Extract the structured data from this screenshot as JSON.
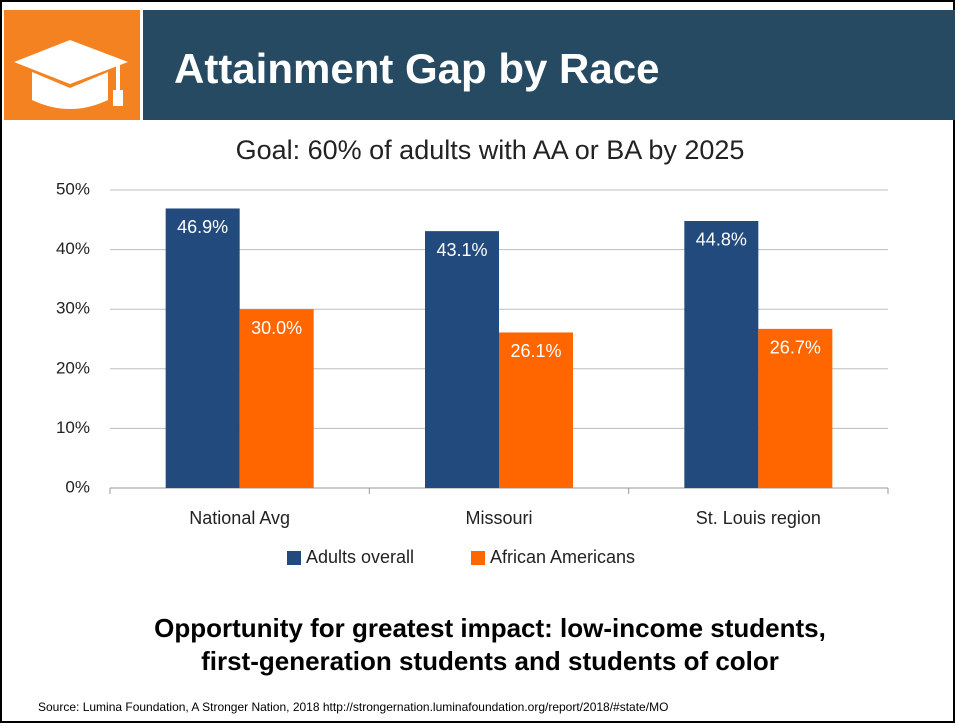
{
  "slide": {
    "title": "Attainment Gap by Race",
    "takeaway": [
      "Opportunity for greatest impact: low-income students,",
      "first-generation students and students of color"
    ],
    "source": "Source: Lumina Foundation, A Stronger Nation, 2018  http://strongernation.luminafoundation.org/report/2018/#state/MO"
  },
  "chart_data": {
    "type": "bar",
    "title": "Goal: 60% of adults with AA or BA by 2025",
    "categories": [
      "National Avg",
      "Missouri",
      "St. Louis region"
    ],
    "series": [
      {
        "name": "Adults overall",
        "color": "#234a7c",
        "values": [
          46.9,
          43.1,
          44.8
        ],
        "value_labels": [
          "46.9%",
          "43.1%",
          "44.8%"
        ]
      },
      {
        "name": "African Americans",
        "color": "#ff6600",
        "values": [
          30.0,
          26.1,
          26.7
        ],
        "value_labels": [
          "30.0%",
          "26.1%",
          "26.7%"
        ]
      }
    ],
    "ylim": [
      0,
      50
    ],
    "yticks": [
      {
        "value": 0,
        "label": "0%"
      },
      {
        "value": 10,
        "label": "10%"
      },
      {
        "value": 20,
        "label": "20%"
      },
      {
        "value": 30,
        "label": "30%"
      },
      {
        "value": 40,
        "label": "40%"
      },
      {
        "value": 50,
        "label": "50%"
      }
    ],
    "grid": true,
    "legend": "bottom"
  }
}
